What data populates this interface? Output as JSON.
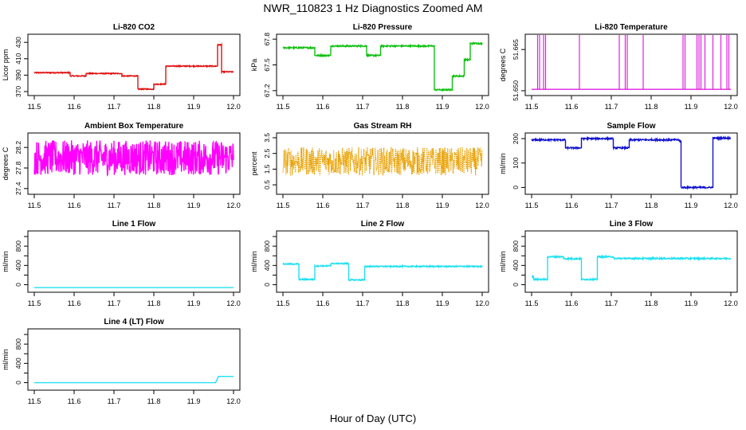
{
  "page": {
    "title": "NWR_110823  1 Hz Diagnostics Zoomed AM",
    "xlabel": "Hour of Day (UTC)"
  },
  "chart_data": [
    {
      "type": "line",
      "title": "Li-820 CO2",
      "ylabel": "Licor ppm",
      "color": "#e01010",
      "xlim": [
        11.5,
        12.0
      ],
      "ylim": [
        369,
        436
      ],
      "xticks": [
        "11.5",
        "11.6",
        "11.7",
        "11.8",
        "11.9",
        "12.0"
      ],
      "yticks": [
        "370",
        "390",
        "410",
        "430"
      ],
      "noise": 0.6,
      "series": [
        {
          "name": "Li-820 CO2",
          "x": [
            11.5,
            11.59,
            11.59,
            11.63,
            11.63,
            11.72,
            11.72,
            11.76,
            11.76,
            11.8,
            11.8,
            11.83,
            11.83,
            11.96,
            11.96,
            11.97,
            11.97,
            12.0
          ],
          "y": [
            393,
            393,
            389,
            389,
            392,
            392,
            389,
            389,
            373,
            373,
            379,
            379,
            401,
            401,
            427,
            427,
            394,
            394
          ]
        }
      ]
    },
    {
      "type": "line",
      "title": "Li-820 Pressure",
      "ylabel": "kPa",
      "color": "#10c010",
      "xlim": [
        11.5,
        12.0
      ],
      "ylim": [
        67.18,
        67.82
      ],
      "xticks": [
        "11.5",
        "11.6",
        "11.7",
        "11.8",
        "11.9",
        "12.0"
      ],
      "yticks": [
        "67.2",
        "67.5",
        "67.8"
      ],
      "noise": 0.008,
      "series": [
        {
          "name": "Li-820 Pressure",
          "x": [
            11.5,
            11.58,
            11.58,
            11.62,
            11.62,
            11.71,
            11.71,
            11.745,
            11.745,
            11.88,
            11.88,
            11.925,
            11.925,
            11.955,
            11.955,
            11.97,
            11.97,
            12.0
          ],
          "y": [
            67.7,
            67.7,
            67.61,
            67.61,
            67.72,
            67.72,
            67.61,
            67.61,
            67.72,
            67.72,
            67.21,
            67.21,
            67.37,
            67.37,
            67.56,
            67.56,
            67.75,
            67.75
          ]
        }
      ]
    },
    {
      "type": "line",
      "title": "Li-820 Temperature",
      "ylabel": "degrees C",
      "color": "#e020e0",
      "xlim": [
        11.5,
        12.0
      ],
      "ylim": [
        51.6494,
        51.6694
      ],
      "xticks": [
        "11.5",
        "11.6",
        "11.7",
        "11.8",
        "11.9",
        "12.0"
      ],
      "yticks": [
        "51.650",
        "51.665"
      ],
      "noise": 0,
      "spikes": [
        11.515,
        11.52,
        11.53,
        11.535,
        11.62,
        11.72,
        11.735,
        11.74,
        11.78,
        11.88,
        11.885,
        11.915,
        11.92,
        11.925,
        11.935,
        11.955,
        11.975,
        11.99,
        11.995
      ],
      "series": [
        {
          "name": "Li-820 Temperature",
          "x": [
            11.5,
            12.0
          ],
          "y": [
            51.6505,
            51.6505
          ]
        }
      ]
    },
    {
      "type": "line",
      "title": "Ambient Box Temperature",
      "ylabel": "degrees C",
      "color": "#ff00ff",
      "xlim": [
        11.5,
        12.0
      ],
      "ylim": [
        27.35,
        28.42
      ],
      "xticks": [
        "11.5",
        "11.6",
        "11.7",
        "11.8",
        "11.9",
        "12.0"
      ],
      "yticks": [
        "27.4",
        "27.8",
        "28.2"
      ],
      "noise": 0.34,
      "series": [
        {
          "name": "Ambient Box Temperature",
          "x": [
            11.5,
            12.0
          ],
          "y": [
            28.0,
            28.0
          ]
        }
      ]
    },
    {
      "type": "line",
      "title": "Gas Stream RH",
      "ylabel": "percent",
      "color": "#e8a000",
      "xlim": [
        11.5,
        12.0
      ],
      "ylim": [
        0.1,
        3.6
      ],
      "xticks": [
        "11.5",
        "11.6",
        "11.7",
        "11.8",
        "11.9",
        "12.0"
      ],
      "yticks": [
        "0.5",
        "1.5",
        "2.5",
        "3.5"
      ],
      "noise": 0.9,
      "dotted": true,
      "series": [
        {
          "name": "Gas Stream RH",
          "x": [
            11.5,
            12.0
          ],
          "y": [
            2.0,
            2.0
          ]
        }
      ]
    },
    {
      "type": "line",
      "title": "Sample Flow",
      "ylabel": "ml/min",
      "color": "#1010d0",
      "xlim": [
        11.5,
        12.0
      ],
      "ylim": [
        -15,
        210
      ],
      "xticks": [
        "11.5",
        "11.6",
        "11.7",
        "11.8",
        "11.9",
        "12.0"
      ],
      "yticks": [
        "0",
        "100",
        "200"
      ],
      "noise": 3,
      "series": [
        {
          "name": "Sample Flow",
          "x": [
            11.5,
            11.585,
            11.585,
            11.625,
            11.625,
            11.705,
            11.705,
            11.745,
            11.745,
            11.87,
            11.87,
            11.875,
            11.875,
            11.955,
            11.955,
            12.0
          ],
          "y": [
            195,
            195,
            162,
            162,
            200,
            200,
            162,
            162,
            195,
            195,
            190,
            190,
            0,
            0,
            202,
            202
          ]
        }
      ]
    },
    {
      "type": "line",
      "title": "Line 1 Flow",
      "ylabel": "ml/min",
      "color": "#20e0f0",
      "xlim": [
        11.5,
        12.0
      ],
      "ylim": [
        -90,
        1050
      ],
      "xticks": [
        "11.5",
        "11.6",
        "11.7",
        "11.8",
        "11.9",
        "12.0"
      ],
      "yticks": [
        "0",
        "400",
        "800"
      ],
      "yticks_minor": [
        "200",
        "600",
        "1000"
      ],
      "noise": 0,
      "series": [
        {
          "name": "Line 1 Flow",
          "x": [
            11.5,
            12.0
          ],
          "y": [
            -60,
            -60
          ]
        }
      ]
    },
    {
      "type": "line",
      "title": "Line 2 Flow",
      "ylabel": "ml/min",
      "color": "#20e0f0",
      "xlim": [
        11.5,
        12.0
      ],
      "ylim": [
        -90,
        1050
      ],
      "xticks": [
        "11.5",
        "11.6",
        "11.7",
        "11.8",
        "11.9",
        "12.0"
      ],
      "yticks": [
        "0",
        "400",
        "800"
      ],
      "yticks_minor": [
        "200",
        "600",
        "1000"
      ],
      "noise": 12,
      "series": [
        {
          "name": "Line 2 Flow",
          "x": [
            11.5,
            11.54,
            11.54,
            11.58,
            11.58,
            11.62,
            11.62,
            11.665,
            11.665,
            11.705,
            11.705,
            12.0
          ],
          "y": [
            430,
            430,
            110,
            110,
            390,
            390,
            440,
            440,
            100,
            100,
            380,
            380
          ]
        }
      ]
    },
    {
      "type": "line",
      "title": "Line 3 Flow",
      "ylabel": "ml/min",
      "color": "#20e0f0",
      "xlim": [
        11.5,
        12.0
      ],
      "ylim": [
        -90,
        1050
      ],
      "xticks": [
        "11.5",
        "11.6",
        "11.7",
        "11.8",
        "11.9",
        "12.0"
      ],
      "yticks": [
        "0",
        "400",
        "800"
      ],
      "yticks_minor": [
        "200",
        "600",
        "1000"
      ],
      "noise": 14,
      "series": [
        {
          "name": "Line 3 Flow",
          "x": [
            11.5,
            11.505,
            11.505,
            11.54,
            11.54,
            11.58,
            11.58,
            11.625,
            11.625,
            11.665,
            11.665,
            11.705,
            11.705,
            12.0
          ],
          "y": [
            170,
            170,
            110,
            110,
            580,
            580,
            540,
            540,
            110,
            110,
            580,
            580,
            545,
            545
          ]
        }
      ]
    },
    {
      "type": "line",
      "title": "Line 4 (LT) Flow",
      "ylabel": "ml/min",
      "color": "#20e0f0",
      "xlim": [
        11.5,
        12.0
      ],
      "ylim": [
        -90,
        1050
      ],
      "xticks": [
        "11.5",
        "11.6",
        "11.7",
        "11.8",
        "11.9",
        "12.0"
      ],
      "yticks": [
        "0",
        "400",
        "800"
      ],
      "yticks_minor": [
        "200",
        "600",
        "1000"
      ],
      "noise": 0,
      "series": [
        {
          "name": "Line 4 (LT) Flow",
          "x": [
            11.5,
            11.955,
            11.962,
            12.0
          ],
          "y": [
            0,
            0,
            130,
            130
          ]
        }
      ]
    }
  ]
}
